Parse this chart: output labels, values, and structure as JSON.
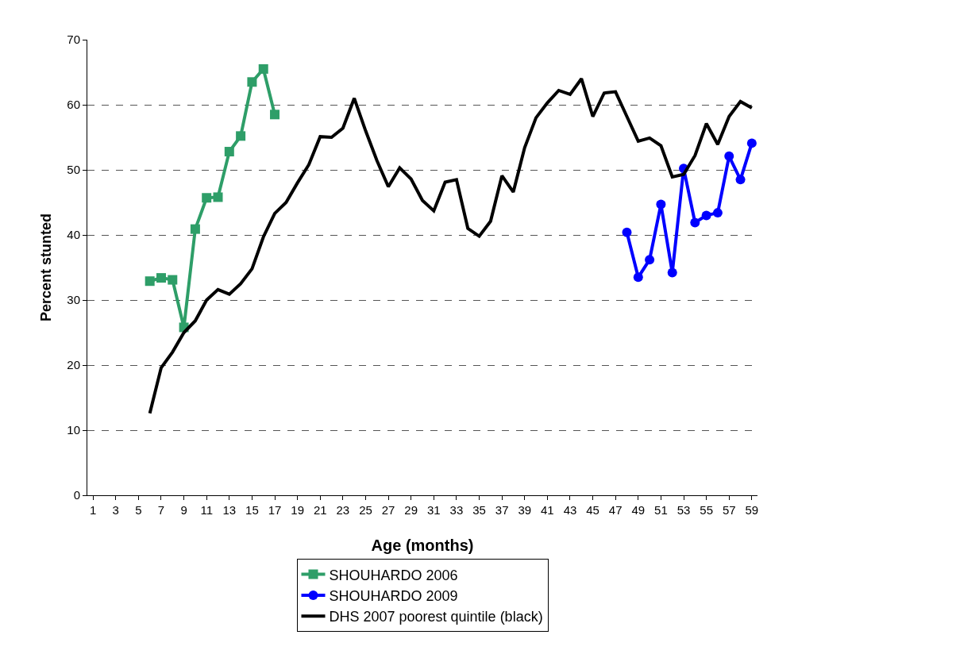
{
  "chart_data": {
    "type": "line",
    "xlabel": "Age (months)",
    "ylabel": "Percent stunted",
    "xlim": [
      0.5,
      59.5
    ],
    "xticks": [
      1,
      3,
      5,
      7,
      9,
      11,
      13,
      15,
      17,
      19,
      21,
      23,
      25,
      27,
      29,
      31,
      33,
      35,
      37,
      39,
      41,
      43,
      45,
      47,
      49,
      51,
      53,
      55,
      57,
      59
    ],
    "ylim": [
      0,
      70
    ],
    "yticks": [
      0,
      10,
      20,
      30,
      40,
      50,
      60,
      70
    ],
    "grid": "y",
    "legend": "bottom",
    "series": [
      {
        "name": "SHOUHARDO 2006",
        "color": "#2e9e68",
        "marker": "square",
        "x": [
          6,
          7,
          8,
          9,
          10,
          11,
          12,
          13,
          14,
          15,
          16,
          17
        ],
        "values": [
          32.9,
          33.4,
          33.1,
          25.8,
          40.9,
          45.7,
          45.8,
          52.8,
          55.2,
          63.5,
          65.5,
          58.5
        ]
      },
      {
        "name": "SHOUHARDO 2009",
        "color": "#0000ff",
        "marker": "circle",
        "x": [
          48,
          49,
          50,
          51,
          52,
          53,
          54,
          55,
          56,
          57,
          58,
          59
        ],
        "values": [
          40.4,
          33.5,
          36.2,
          44.7,
          34.2,
          50.2,
          41.9,
          43,
          43.4,
          52.1,
          48.5,
          54.1
        ]
      },
      {
        "name": "DHS 2007 poorest quintile (black)",
        "color": "#000000",
        "marker": "none",
        "x": [
          6,
          7,
          8,
          9,
          10,
          11,
          12,
          13,
          14,
          15,
          16,
          17,
          18,
          19,
          20,
          21,
          22,
          23,
          24,
          25,
          26,
          27,
          28,
          29,
          30,
          31,
          32,
          33,
          34,
          35,
          36,
          37,
          38,
          39,
          40,
          41,
          42,
          43,
          44,
          45,
          46,
          47,
          48,
          49,
          50,
          51,
          52,
          53,
          54,
          55,
          56,
          57,
          58,
          59
        ],
        "values": [
          12.6,
          19.6,
          22,
          25,
          26.8,
          30,
          31.6,
          30.9,
          32.5,
          34.8,
          39.7,
          43.3,
          45,
          48,
          50.8,
          55.1,
          55,
          56.4,
          61,
          56,
          51.4,
          47.4,
          50.3,
          48.6,
          45.3,
          43.7,
          48.1,
          48.5,
          41,
          39.8,
          42.1,
          49.1,
          46.6,
          53.4,
          58,
          60.3,
          62.2,
          61.6,
          64,
          58.2,
          61.8,
          62,
          58.2,
          54.4,
          54.9,
          53.7,
          48.9,
          49.3,
          52.2,
          57.1,
          53.9,
          58.2,
          60.5,
          59.5
        ]
      }
    ]
  }
}
